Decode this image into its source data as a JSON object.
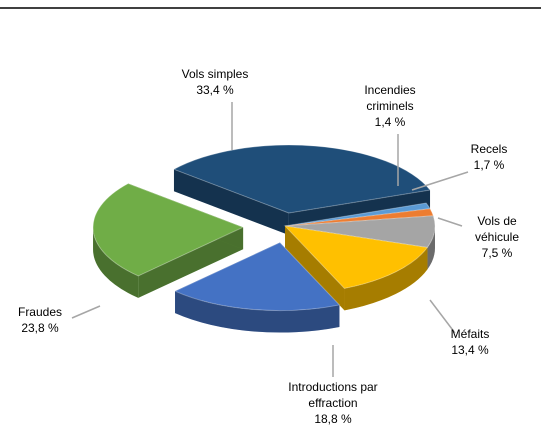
{
  "chart_data": {
    "type": "pie",
    "categories": [
      "Vols simples",
      "Incendies criminels",
      "Recels",
      "Vols de véhicule",
      "Méfaits",
      "Introductions par effraction",
      "Fraudes"
    ],
    "values": [
      33.4,
      1.4,
      1.7,
      7.5,
      13.4,
      18.8,
      23.8
    ],
    "value_labels": [
      "33,4 %",
      "1,4 %",
      "1,7 %",
      "7,5 %",
      "13,4 %",
      "18,8 %",
      "23,8 %"
    ],
    "colors": [
      "#1f4e79",
      "#5b9bd5",
      "#ed7d31",
      "#a5a5a5",
      "#ffc000",
      "#4472c4",
      "#70ad47"
    ]
  }
}
